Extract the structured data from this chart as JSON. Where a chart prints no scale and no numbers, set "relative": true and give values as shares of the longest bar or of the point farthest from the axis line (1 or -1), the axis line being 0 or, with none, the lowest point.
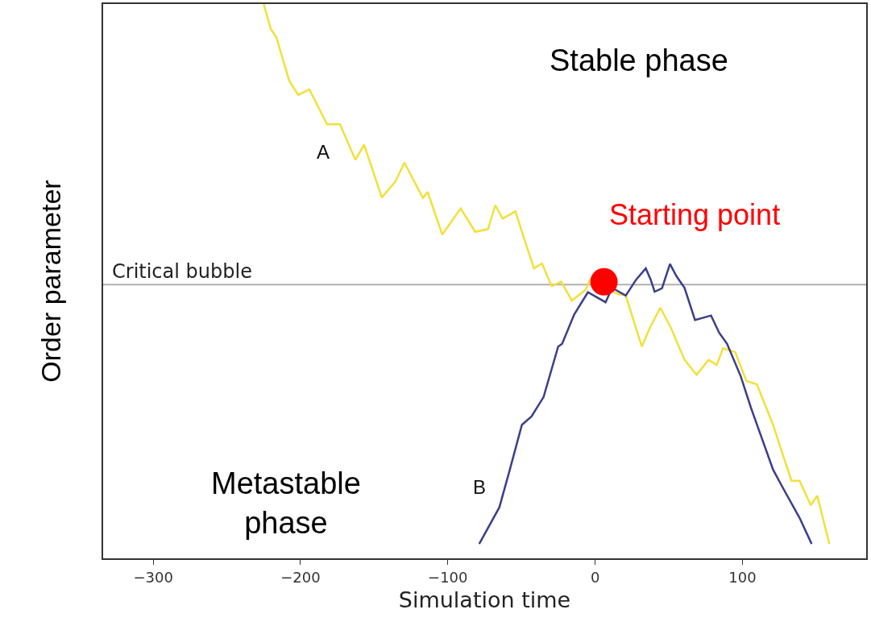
{
  "chart_data": {
    "type": "line",
    "relative": true,
    "xlabel": "Simulation time",
    "ylabel": "Order parameter",
    "xlim": [
      -334,
      184
    ],
    "xticks": [
      {
        "value": -300,
        "label": "−300"
      },
      {
        "value": -200,
        "label": "−200"
      },
      {
        "value": -100,
        "label": "−100"
      },
      0,
      100
    ],
    "grid": false,
    "legend": false,
    "marker": "none",
    "line_style": "solid",
    "series": [
      {
        "name": "A",
        "color": "#f2e03a",
        "x": [
          -225,
          -220.2,
          -216.4,
          -207.7,
          -201.6,
          -194,
          -182,
          -173.2,
          -162.8,
          -156.8,
          -144.8,
          -135.5,
          -129.5,
          -116.9,
          -113.7,
          -103.8,
          -91.3,
          -81.4,
          -72.7,
          -67.8,
          -62.8,
          -54.1,
          -47.5,
          -41.5,
          -36.1,
          -29.5,
          -23,
          -15.8,
          -6.6,
          -3.3,
          6,
          15.3,
          20.8,
          31.7,
          37.2,
          44.3,
          51.4,
          60.7,
          68.9,
          77,
          82.5,
          86.9,
          95.1,
          102.7,
          109.8,
          120.8,
          127.9,
          133.3,
          138.8,
          146.4,
          150.8,
          159
        ],
        "values": [
          1,
          0.955,
          0.94,
          0.862,
          0.836,
          0.846,
          0.783,
          0.783,
          0.719,
          0.746,
          0.651,
          0.68,
          0.714,
          0.65,
          0.661,
          0.584,
          0.631,
          0.589,
          0.594,
          0.637,
          0.613,
          0.626,
          0.571,
          0.523,
          0.532,
          0.491,
          0.499,
          0.465,
          0.484,
          0.503,
          null,
          0.477,
          0.474,
          0.382,
          0.416,
          0.452,
          0.416,
          0.358,
          0.331,
          0.358,
          0.349,
          0.379,
          0.372,
          0.32,
          0.314,
          0.241,
          0.183,
          0.14,
          0.14,
          0.096,
          0.113,
          0.026
        ]
      },
      {
        "name": "B",
        "color": "#3a3f8a",
        "x": [
          -78.7,
          -65,
          -57.9,
          -49.7,
          -43.2,
          -35,
          -25.1,
          -22.4,
          -14.2,
          -4.9,
          0.5,
          7.1,
          11.5,
          20.8,
          27.9,
          34.4,
          37.7,
          40.4,
          45.4,
          50.8,
          55.2,
          60.7,
          67.8,
          78.7,
          84.2,
          89.6,
          98.9,
          106,
          120.8,
          127.9,
          138.8,
          147
        ],
        "values": [
          0.026,
          0.092,
          0.16,
          0.241,
          0.256,
          0.291,
          0.382,
          0.387,
          0.44,
          0.48,
          null,
          0.462,
          0.488,
          0.474,
          0.503,
          0.523,
          0.503,
          0.481,
          0.487,
          0.531,
          0.509,
          0.488,
          0.43,
          0.438,
          0.407,
          0.387,
          0.328,
          0.27,
          0.16,
          0.125,
          0.073,
          0.026
        ]
      },
      {
        "name": "Starting point",
        "type": "scatter",
        "marker": "circle",
        "color": "#ff0000",
        "x": [
          6
        ],
        "values": [
          0.499
        ]
      }
    ],
    "ref_lines": [
      {
        "axis": "y",
        "value": 0.494,
        "label": "Critical bubble",
        "color": "#b0b0b0"
      }
    ],
    "annotations": [
      "Stable phase",
      "Metastable phase"
    ]
  }
}
